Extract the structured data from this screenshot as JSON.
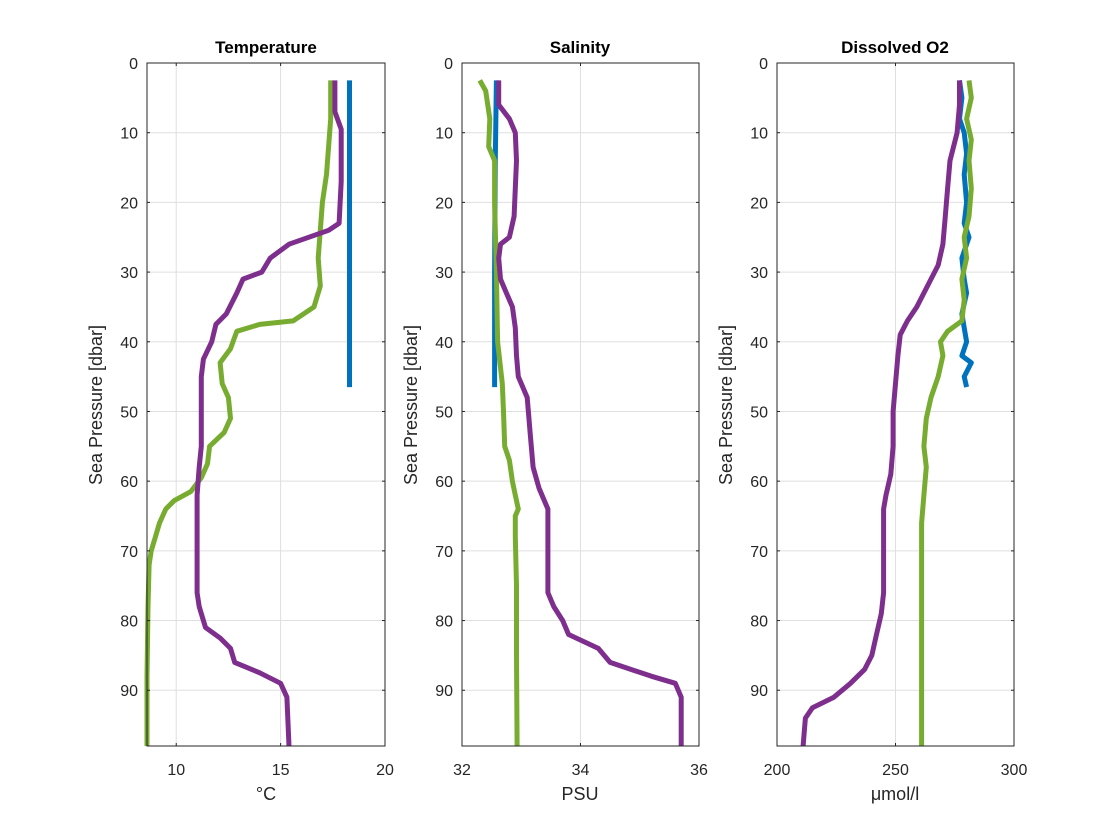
{
  "colors": {
    "blue": "#0072BD",
    "green": "#77AC30",
    "purple": "#7E2F8E"
  },
  "chart_data": [
    {
      "type": "line",
      "title": "Temperature",
      "xlabel": "°C",
      "ylabel": "Sea Pressure [dbar]",
      "xlim": [
        8.6,
        20
      ],
      "ylim": [
        0,
        98
      ],
      "y_reversed": true,
      "xticks": [
        10,
        15,
        20
      ],
      "yticks": [
        0,
        10,
        20,
        30,
        40,
        50,
        60,
        70,
        80,
        90
      ],
      "grid": true,
      "series": [
        {
          "color": "blue",
          "points": [
            [
              18.3,
              2.5
            ],
            [
              18.3,
              46.5
            ]
          ]
        },
        {
          "color": "green",
          "points": [
            [
              17.4,
              2.5
            ],
            [
              17.4,
              8
            ],
            [
              17.3,
              12
            ],
            [
              17.2,
              16
            ],
            [
              17.0,
              20
            ],
            [
              16.9,
              24
            ],
            [
              16.8,
              28
            ],
            [
              16.9,
              32
            ],
            [
              16.6,
              35
            ],
            [
              15.6,
              37
            ],
            [
              14.0,
              37.5
            ],
            [
              12.9,
              38.5
            ],
            [
              12.6,
              41
            ],
            [
              12.1,
              43
            ],
            [
              12.2,
              46
            ],
            [
              12.5,
              48
            ],
            [
              12.6,
              51
            ],
            [
              12.3,
              53
            ],
            [
              11.6,
              55
            ],
            [
              11.5,
              57.5
            ],
            [
              11.2,
              59.5
            ],
            [
              10.7,
              61.5
            ],
            [
              9.9,
              62.8
            ],
            [
              9.5,
              64
            ],
            [
              9.2,
              66
            ],
            [
              9.0,
              68
            ],
            [
              8.8,
              70
            ],
            [
              8.7,
              72
            ],
            [
              8.65,
              78
            ],
            [
              8.6,
              88
            ],
            [
              8.6,
              98
            ]
          ]
        },
        {
          "color": "purple",
          "points": [
            [
              17.6,
              2.5
            ],
            [
              17.6,
              7
            ],
            [
              17.9,
              9.5
            ],
            [
              17.9,
              17
            ],
            [
              17.8,
              23
            ],
            [
              17.3,
              24
            ],
            [
              15.4,
              26
            ],
            [
              14.5,
              28
            ],
            [
              14.1,
              30
            ],
            [
              13.2,
              31
            ],
            [
              12.9,
              33
            ],
            [
              12.4,
              36
            ],
            [
              11.9,
              37.5
            ],
            [
              11.7,
              40
            ],
            [
              11.3,
              42.5
            ],
            [
              11.2,
              45
            ],
            [
              11.2,
              55
            ],
            [
              11.1,
              58
            ],
            [
              11.0,
              62
            ],
            [
              11.0,
              70
            ],
            [
              11.0,
              76
            ],
            [
              11.1,
              78
            ],
            [
              11.4,
              81
            ],
            [
              12.1,
              82.5
            ],
            [
              12.6,
              84
            ],
            [
              12.8,
              86
            ],
            [
              14.0,
              87.5
            ],
            [
              15.0,
              89
            ],
            [
              15.3,
              91
            ],
            [
              15.4,
              98
            ]
          ]
        }
      ]
    },
    {
      "type": "line",
      "title": "Salinity",
      "xlabel": "PSU",
      "ylabel": "Sea Pressure [dbar]",
      "xlim": [
        32,
        36
      ],
      "ylim": [
        0,
        98
      ],
      "y_reversed": true,
      "xticks": [
        32,
        34,
        36
      ],
      "yticks": [
        0,
        10,
        20,
        30,
        40,
        50,
        60,
        70,
        80,
        90
      ],
      "grid": true,
      "series": [
        {
          "color": "blue",
          "points": [
            [
              32.58,
              2.5
            ],
            [
              32.56,
              15
            ],
            [
              32.55,
              30
            ],
            [
              32.55,
              46.5
            ]
          ]
        },
        {
          "color": "green",
          "points": [
            [
              32.3,
              2.5
            ],
            [
              32.4,
              4
            ],
            [
              32.47,
              8
            ],
            [
              32.45,
              12
            ],
            [
              32.55,
              14
            ],
            [
              32.55,
              20
            ],
            [
              32.58,
              30
            ],
            [
              32.6,
              40
            ],
            [
              32.68,
              46
            ],
            [
              32.7,
              50
            ],
            [
              32.72,
              55
            ],
            [
              32.8,
              57
            ],
            [
              32.85,
              60
            ],
            [
              32.9,
              62
            ],
            [
              32.95,
              64
            ],
            [
              32.9,
              65
            ],
            [
              32.9,
              68
            ],
            [
              32.92,
              75
            ],
            [
              32.92,
              85
            ],
            [
              32.93,
              98
            ]
          ]
        },
        {
          "color": "purple",
          "points": [
            [
              32.62,
              2.5
            ],
            [
              32.62,
              6
            ],
            [
              32.8,
              8
            ],
            [
              32.9,
              10
            ],
            [
              32.92,
              14
            ],
            [
              32.9,
              18
            ],
            [
              32.88,
              22
            ],
            [
              32.8,
              25
            ],
            [
              32.65,
              26
            ],
            [
              32.62,
              28
            ],
            [
              32.65,
              31
            ],
            [
              32.75,
              33
            ],
            [
              32.85,
              35
            ],
            [
              32.9,
              38
            ],
            [
              32.92,
              42
            ],
            [
              32.95,
              45
            ],
            [
              33.1,
              48
            ],
            [
              33.15,
              53
            ],
            [
              33.2,
              58
            ],
            [
              33.3,
              61
            ],
            [
              33.45,
              64
            ],
            [
              33.45,
              70
            ],
            [
              33.45,
              76
            ],
            [
              33.55,
              78
            ],
            [
              33.7,
              80
            ],
            [
              33.8,
              82
            ],
            [
              34.3,
              84
            ],
            [
              34.5,
              86
            ],
            [
              35.2,
              88
            ],
            [
              35.6,
              89
            ],
            [
              35.7,
              91
            ],
            [
              35.7,
              98
            ]
          ]
        }
      ]
    },
    {
      "type": "line",
      "title": "Dissolved O2",
      "xlabel": "μmol/l",
      "ylabel": "Sea Pressure [dbar]",
      "xlim": [
        200,
        300
      ],
      "ylim": [
        0,
        98
      ],
      "y_reversed": true,
      "xticks": [
        200,
        250,
        300
      ],
      "yticks": [
        0,
        10,
        20,
        30,
        40,
        50,
        60,
        70,
        80,
        90
      ],
      "grid": true,
      "series": [
        {
          "color": "blue",
          "points": [
            [
              277,
              2.5
            ],
            [
              278,
              5
            ],
            [
              277,
              8
            ],
            [
              279,
              10
            ],
            [
              280,
              13
            ],
            [
              279,
              16
            ],
            [
              280,
              20
            ],
            [
              279,
              23
            ],
            [
              281,
              25
            ],
            [
              278,
              28
            ],
            [
              279,
              31
            ],
            [
              280,
              33
            ],
            [
              278,
              36
            ],
            [
              279,
              38
            ],
            [
              280,
              40
            ],
            [
              278,
              42
            ],
            [
              282,
              43
            ],
            [
              279,
              45
            ],
            [
              280,
              46.5
            ]
          ]
        },
        {
          "color": "green",
          "points": [
            [
              281,
              2.5
            ],
            [
              282,
              5
            ],
            [
              280,
              8
            ],
            [
              282,
              11
            ],
            [
              281,
              14
            ],
            [
              282,
              18
            ],
            [
              281,
              22
            ],
            [
              279,
              25
            ],
            [
              280,
              28
            ],
            [
              278,
              31
            ],
            [
              279,
              34
            ],
            [
              278,
              37
            ],
            [
              272,
              38.5
            ],
            [
              269,
              40
            ],
            [
              270,
              42
            ],
            [
              268,
              45
            ],
            [
              265,
              48
            ],
            [
              263,
              51
            ],
            [
              262,
              55
            ],
            [
              263,
              58
            ],
            [
              262,
              62
            ],
            [
              261,
              66
            ],
            [
              261,
              72
            ],
            [
              261,
              80
            ],
            [
              261,
              88
            ],
            [
              261,
              98
            ]
          ]
        },
        {
          "color": "purple",
          "points": [
            [
              277,
              2.5
            ],
            [
              277,
              6
            ],
            [
              276,
              10
            ],
            [
              273,
              14
            ],
            [
              272,
              18
            ],
            [
              271,
              22
            ],
            [
              270,
              26
            ],
            [
              268,
              29
            ],
            [
              265,
              31
            ],
            [
              262,
              33
            ],
            [
              259,
              35
            ],
            [
              255,
              37
            ],
            [
              252,
              39
            ],
            [
              251,
              42
            ],
            [
              250,
              46
            ],
            [
              249,
              50
            ],
            [
              249,
              55
            ],
            [
              248,
              59
            ],
            [
              246,
              62
            ],
            [
              245,
              64
            ],
            [
              245,
              70
            ],
            [
              245,
              76
            ],
            [
              244,
              79
            ],
            [
              242,
              82
            ],
            [
              240,
              85
            ],
            [
              237,
              87
            ],
            [
              231,
              89
            ],
            [
              224,
              91
            ],
            [
              215,
              92.5
            ],
            [
              212,
              94
            ],
            [
              211,
              98
            ]
          ]
        }
      ]
    }
  ]
}
